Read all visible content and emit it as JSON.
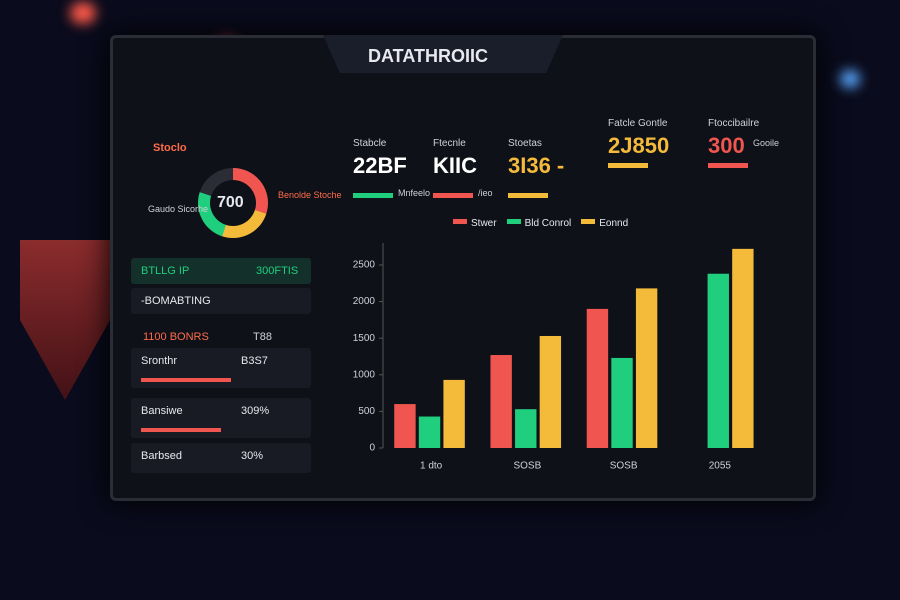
{
  "header": {
    "logo": "Stoclo",
    "title": "DATATHROIIC"
  },
  "kpis": [
    {
      "label": "Stabcle",
      "value": "22BF",
      "sub": "Mnfeelo"
    },
    {
      "label": "Ftecnle",
      "value": "KIIC",
      "sub": "/ieo"
    },
    {
      "label": "Stoetas",
      "value": "3I36 -"
    },
    {
      "label": "Fatcle Gontle",
      "value": "2J850"
    },
    {
      "label": "Ftoccibailre",
      "value": "300",
      "sub": "Gooile"
    }
  ],
  "gauge": {
    "value": "700",
    "left": "Gaudo Sicorhe",
    "right": "Benolde Stoche"
  },
  "rows": [
    {
      "label": "BTLLG IP",
      "value": "300FTIS"
    },
    {
      "label": "-BOMABTING"
    },
    {
      "label": "1100 BONRS",
      "value": "T88"
    },
    {
      "label": "Sronthr",
      "value": "B3S7"
    },
    {
      "label": "Bansiwe",
      "value": "309%"
    },
    {
      "label": "Barbsed",
      "value": "30%"
    }
  ],
  "chart_data": {
    "type": "bar",
    "categories": [
      "1 dto",
      "SOSB",
      "SOSB",
      "2055"
    ],
    "series": [
      {
        "name": "Stwer",
        "color": "#f0564f",
        "values": [
          600,
          1270,
          1900,
          null
        ]
      },
      {
        "name": "Bld Conrol",
        "color": "#1fcf7e",
        "values": [
          430,
          530,
          1230,
          2380
        ]
      },
      {
        "name": "Eonnd",
        "color": "#f4bb3a",
        "values": [
          930,
          1530,
          2180,
          2720
        ]
      }
    ],
    "ylim": [
      0,
      2800
    ],
    "yticks": [
      0,
      500,
      1000,
      1500,
      2000,
      2500
    ],
    "grid": false
  }
}
